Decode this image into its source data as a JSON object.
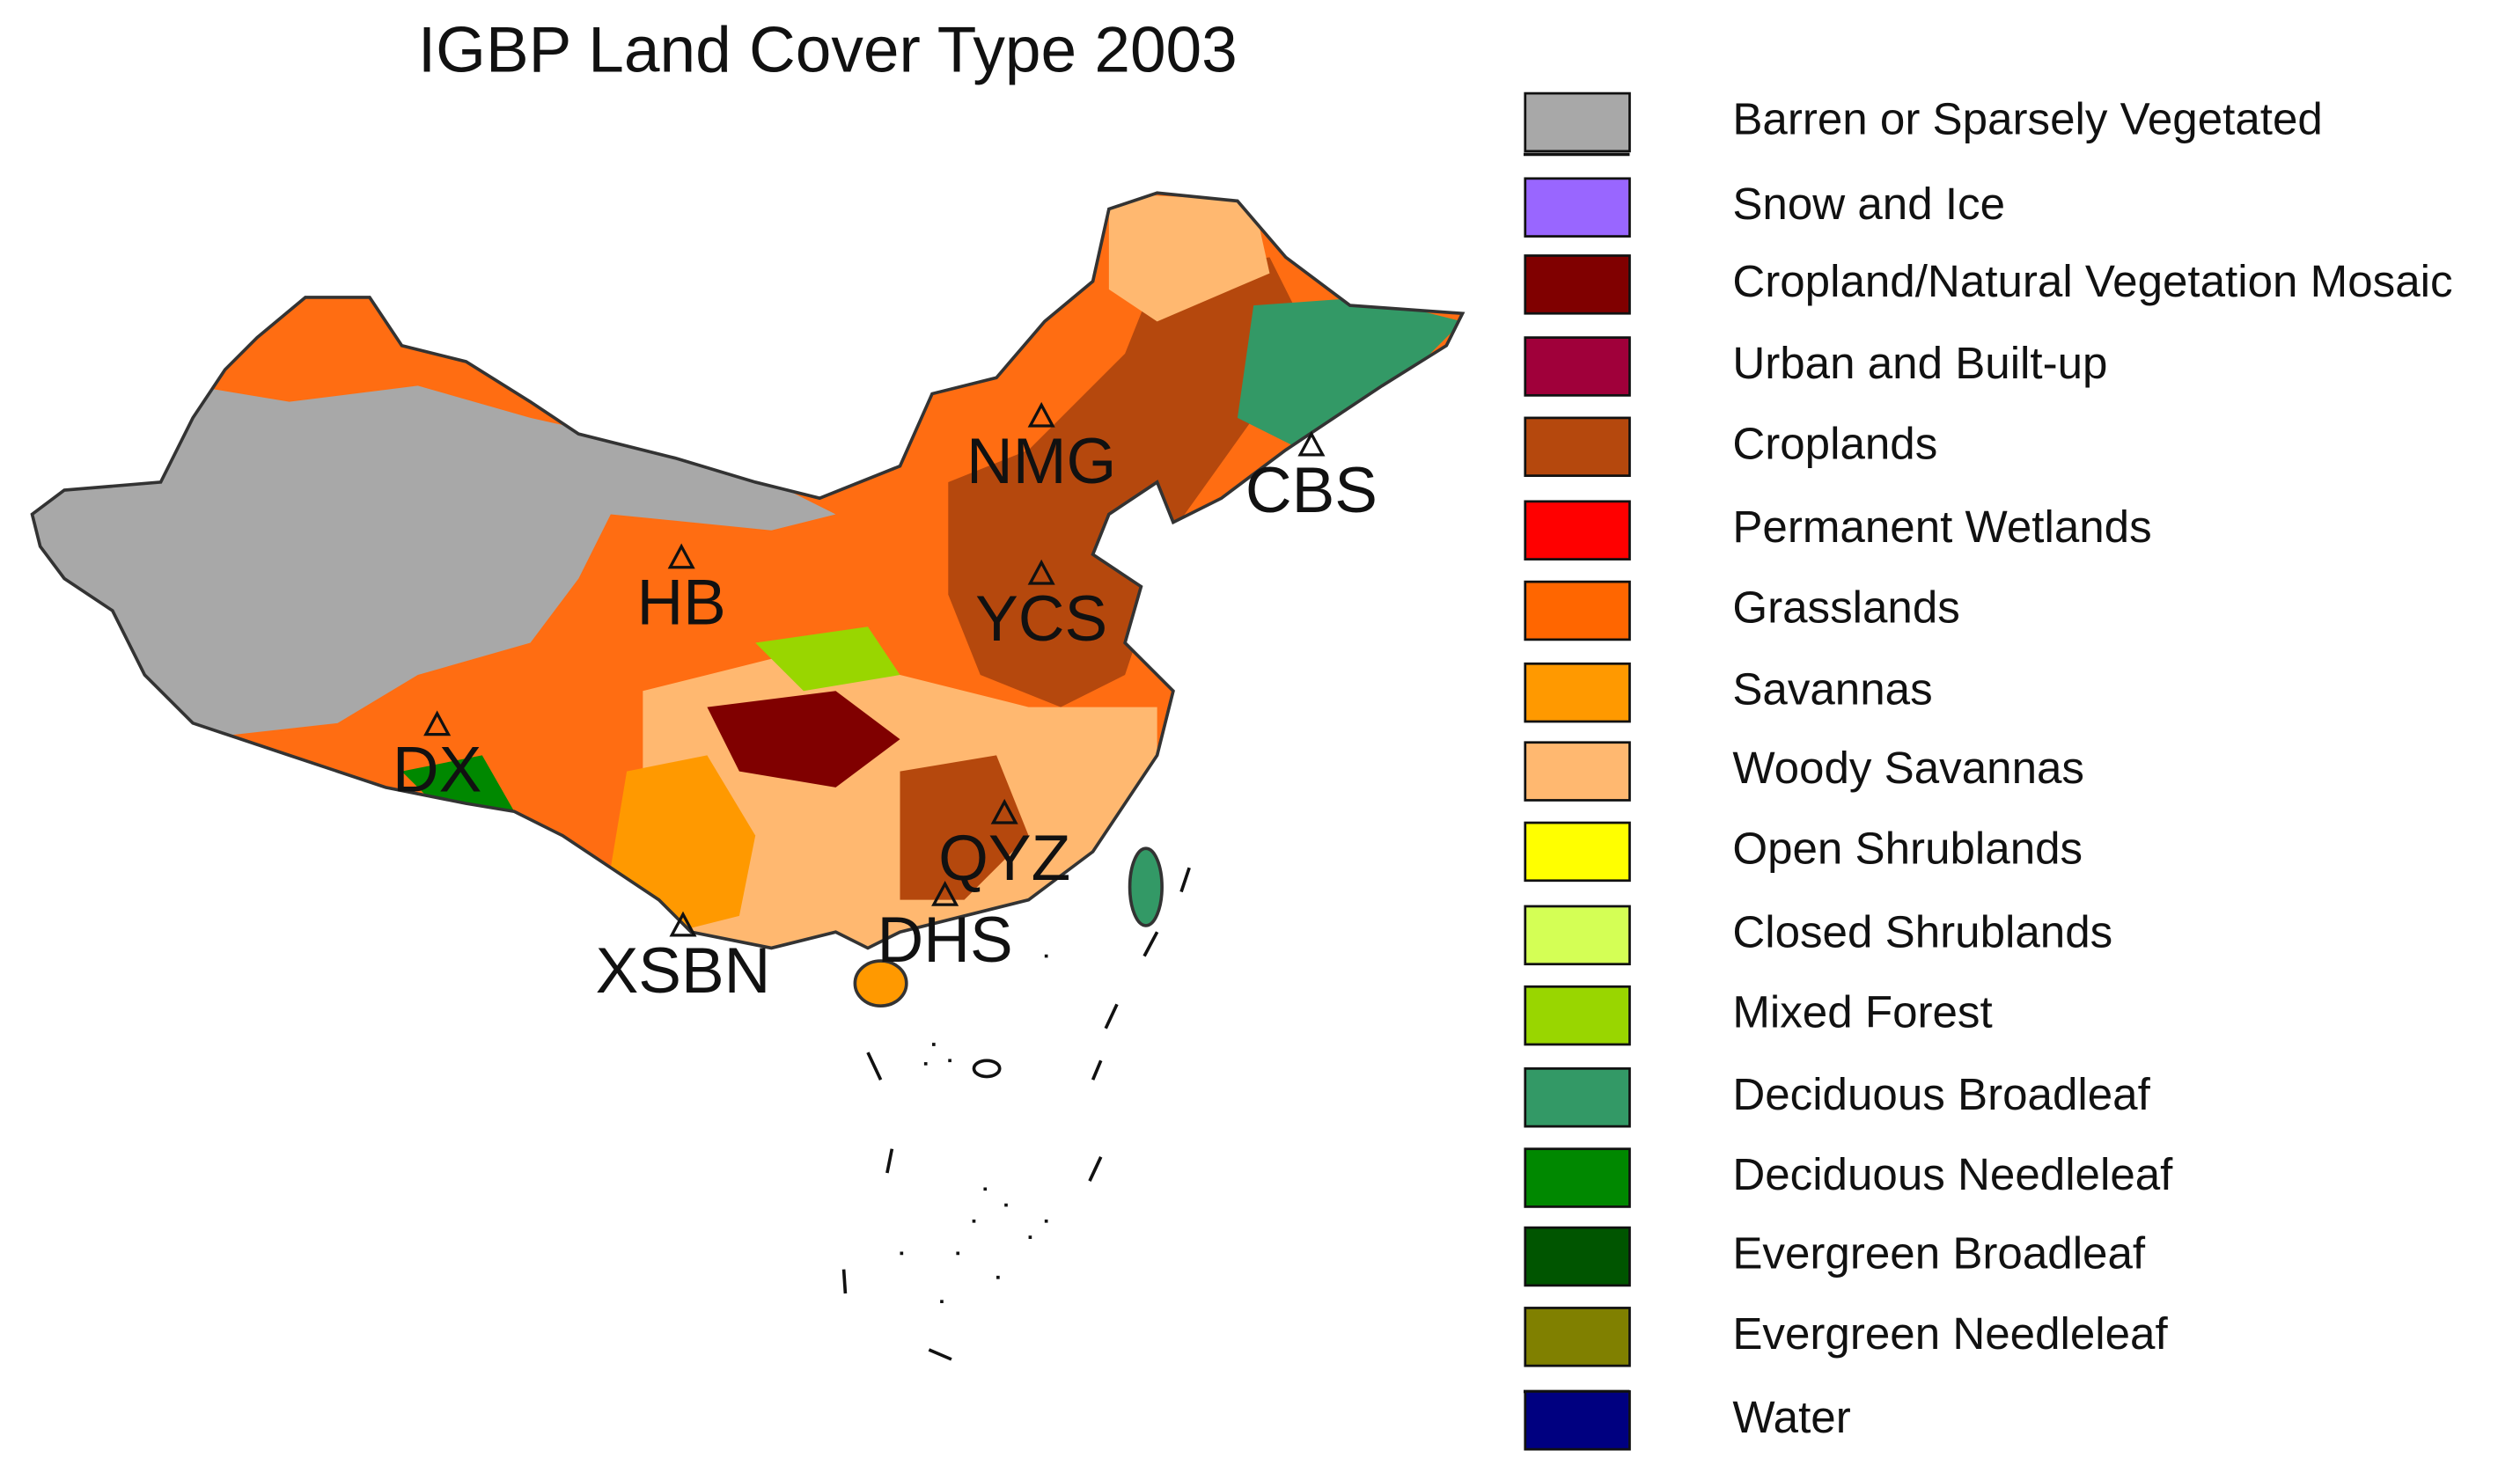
{
  "title": "IGBP Land Cover Type 2003",
  "legend": [
    {
      "label": "Barren or Sparsely Vegetated",
      "color": "#a8a8a8"
    },
    {
      "label": "Snow and Ice",
      "color": "#9966ff"
    },
    {
      "label": "Cropland/Natural Vegetation Mosaic",
      "color": "#800000"
    },
    {
      "label": "Urban and Built-up",
      "color": "#a0003a"
    },
    {
      "label": "Croplands",
      "color": "#b5480d"
    },
    {
      "label": "Permanent Wetlands",
      "color": "#ff0000"
    },
    {
      "label": "Grasslands",
      "color": "#ff6600"
    },
    {
      "label": "Savannas",
      "color": "#ff9900"
    },
    {
      "label": "Woody Savannas",
      "color": "#ffb870"
    },
    {
      "label": "Open Shrublands",
      "color": "#ffff00"
    },
    {
      "label": "Closed Shrublands",
      "color": "#d4ff55"
    },
    {
      "label": "Mixed Forest",
      "color": "#99d600"
    },
    {
      "label": "Deciduous Broadleaf",
      "color": "#339966"
    },
    {
      "label": "Deciduous Needleleaf",
      "color": "#008800"
    },
    {
      "label": "Evergreen Broadleaf",
      "color": "#005500"
    },
    {
      "label": "Evergreen Needleleaf",
      "color": "#808000"
    },
    {
      "label": "Water",
      "color": "#000080"
    }
  ],
  "sites": [
    {
      "label": "NMG"
    },
    {
      "label": "CBS"
    },
    {
      "label": "HB"
    },
    {
      "label": "YCS"
    },
    {
      "label": "DX"
    },
    {
      "label": "QYZ"
    },
    {
      "label": "DHS"
    },
    {
      "label": "XSBN"
    }
  ]
}
